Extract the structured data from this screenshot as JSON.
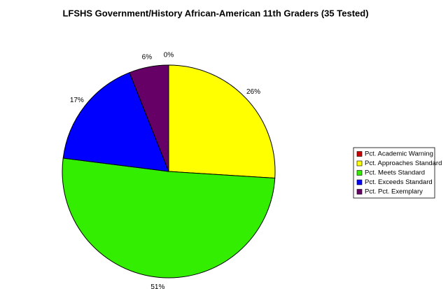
{
  "chart_data": {
    "type": "pie",
    "title": "LFSHS Government/History African-American 11th Graders (35 Tested)",
    "categories": [
      "Pct. Academic Warning",
      "Pct. Approaches Standard",
      "Pct. Meets Standard",
      "Pct. Exceeds Standard",
      "Pct. Pct. Exemplary"
    ],
    "values": [
      0,
      26,
      51,
      17,
      6
    ],
    "value_labels": [
      "0%",
      "26%",
      "51%",
      "17%",
      "6%"
    ],
    "colors": [
      "#cc0000",
      "#ffff00",
      "#33ee00",
      "#0000ff",
      "#660066"
    ],
    "legend": "right"
  }
}
